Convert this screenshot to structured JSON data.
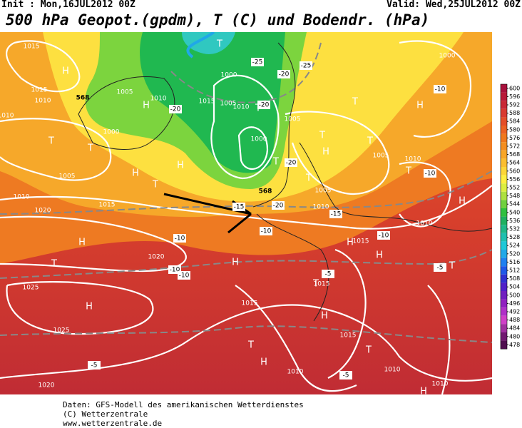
{
  "header": {
    "init": "Init : Mon,16JUL2012 00Z",
    "valid": "Valid: Wed,25JUL2012 00Z",
    "title": "500 hPa Geopot.(gpdm), T (C) und Bodendr. (hPa)"
  },
  "legend": {
    "labels": [
      "600",
      "596",
      "592",
      "588",
      "584",
      "580",
      "576",
      "572",
      "568",
      "564",
      "560",
      "556",
      "552",
      "548",
      "544",
      "540",
      "536",
      "532",
      "528",
      "524",
      "520",
      "516",
      "512",
      "508",
      "504",
      "500",
      "496",
      "492",
      "488",
      "484",
      "480",
      "478"
    ],
    "colors": [
      "#a8103c",
      "#b81838",
      "#c82836",
      "#d83a30",
      "#e44e28",
      "#ec6222",
      "#f0781c",
      "#f48e20",
      "#f8a628",
      "#fbbe30",
      "#fdd638",
      "#ffee40",
      "#dcee40",
      "#aee040",
      "#70d040",
      "#30c040",
      "#20b060",
      "#20b888",
      "#20c0b0",
      "#20c8d8",
      "#20a8e8",
      "#2080f0",
      "#2058e8",
      "#3030d0",
      "#5020c8",
      "#7020c0",
      "#9020c0",
      "#b030c8",
      "#d040c8",
      "#a030a0",
      "#701870",
      "#501050"
    ]
  },
  "map": {
    "pressure_centers": [
      "H",
      "H",
      "T",
      "T",
      "H",
      "T",
      "H",
      "T",
      "T",
      "T",
      "T",
      "H",
      "T",
      "H",
      "T",
      "T",
      "T",
      "H",
      "H",
      "T",
      "H",
      "H",
      "H",
      "T",
      "H",
      "T",
      "H",
      "T",
      "H",
      "T",
      "H"
    ],
    "isobar_labels": [
      "1015",
      "1015",
      "1010",
      "1000",
      "1005",
      "1010",
      "1015",
      "1020",
      "1020",
      "1025",
      "1025",
      "1020",
      "1010",
      "1015",
      "1000",
      "1005",
      "1010",
      "1000",
      "1005",
      "1010",
      "1005",
      "1005",
      "1010",
      "1000",
      "1010",
      "1015",
      "1015",
      "1015",
      "1015",
      "1010",
      "1010",
      "1010",
      "1005",
      "1010"
    ],
    "temperature_labels": [
      "-25",
      "-20",
      "-20",
      "-20",
      "-20",
      "-20",
      "-15",
      "-15",
      "-10",
      "-10",
      "-10",
      "-10",
      "-10",
      "-10",
      "-10",
      "-5",
      "-5",
      "-5",
      "-5",
      "-25"
    ],
    "height_labels": [
      "568",
      "568"
    ]
  },
  "footer": {
    "lines": [
      "Daten: GFS-Modell des amerikanischen Wetterdienstes",
      "(C) Wetterzentrale",
      "www.wetterzentrale.de"
    ]
  }
}
